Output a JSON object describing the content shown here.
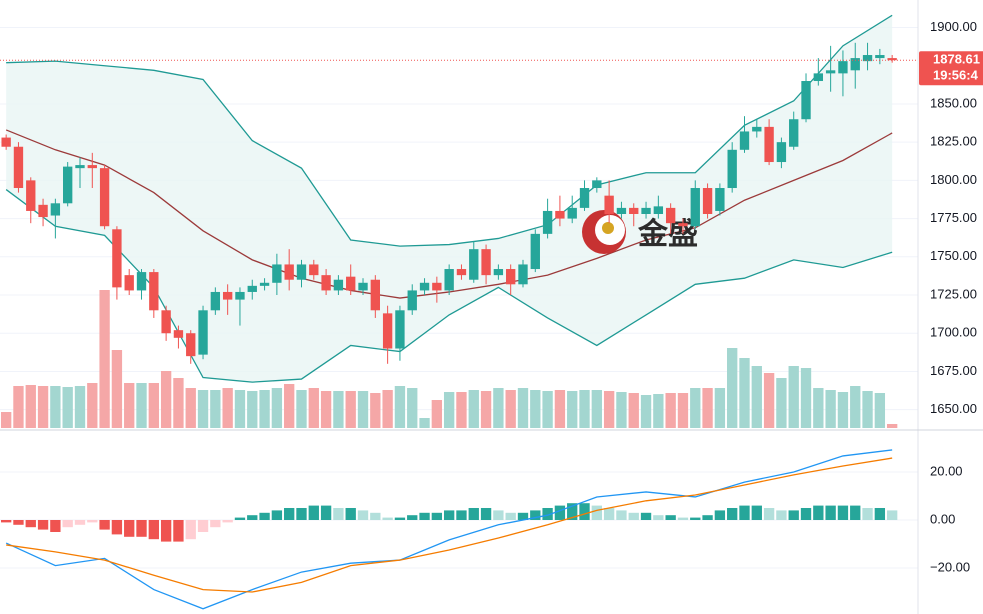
{
  "chart_data": {
    "type": "candlestick",
    "xlim": [
      -0.5,
      74.1
    ],
    "ylim": [
      1638,
      1918
    ],
    "yticks": [
      {
        "value": 1650,
        "label": "1650.00"
      },
      {
        "value": 1675,
        "label": "1675.00"
      },
      {
        "value": 1700,
        "label": "1700.00"
      },
      {
        "value": 1725,
        "label": "1725.00"
      },
      {
        "value": 1750,
        "label": "1750.00"
      },
      {
        "value": 1775,
        "label": "1775.00"
      },
      {
        "value": 1800,
        "label": "1800.00"
      },
      {
        "value": 1825,
        "label": "1825.00"
      },
      {
        "value": 1850,
        "label": "1850.00"
      },
      {
        "value": 1900,
        "label": "1900.00"
      }
    ],
    "grid": true,
    "up_color": "#26a69a",
    "down_color": "#ef5350",
    "candles": {
      "open": [
        1828,
        1822,
        1800,
        1784,
        1777,
        1785,
        1808,
        1810,
        1808,
        1768,
        1738,
        1728,
        1740,
        1715,
        1702,
        1700,
        1686,
        1715,
        1727,
        1722,
        1727,
        1731,
        1733,
        1745,
        1735,
        1745,
        1738,
        1728,
        1737,
        1728,
        1735,
        1713,
        1690,
        1715,
        1728,
        1733,
        1728,
        1742,
        1735,
        1755,
        1738,
        1742,
        1732,
        1742,
        1765,
        1780,
        1775,
        1782,
        1795,
        1790,
        1778,
        1782,
        1778,
        1778,
        1782,
        1772,
        1770,
        1795,
        1780,
        1795,
        1820,
        1832,
        1835,
        1812,
        1822,
        1840,
        1865,
        1870,
        1870,
        1872,
        1878,
        1880,
        1880
      ],
      "high": [
        1830,
        1825,
        1802,
        1788,
        1788,
        1812,
        1815,
        1818,
        1810,
        1770,
        1742,
        1742,
        1742,
        1718,
        1705,
        1702,
        1718,
        1730,
        1732,
        1730,
        1735,
        1736,
        1752,
        1755,
        1748,
        1748,
        1742,
        1738,
        1745,
        1736,
        1738,
        1718,
        1718,
        1732,
        1736,
        1737,
        1745,
        1745,
        1760,
        1758,
        1745,
        1745,
        1748,
        1768,
        1788,
        1790,
        1790,
        1800,
        1802,
        1800,
        1786,
        1785,
        1786,
        1790,
        1785,
        1775,
        1800,
        1798,
        1798,
        1825,
        1842,
        1840,
        1840,
        1828,
        1845,
        1870,
        1880,
        1888,
        1885,
        1890,
        1890,
        1886,
        1882
      ],
      "low": [
        1820,
        1792,
        1772,
        1770,
        1762,
        1783,
        1795,
        1795,
        1768,
        1722,
        1725,
        1722,
        1710,
        1695,
        1690,
        1680,
        1683,
        1712,
        1712,
        1705,
        1722,
        1728,
        1725,
        1728,
        1730,
        1735,
        1725,
        1725,
        1725,
        1725,
        1710,
        1680,
        1682,
        1712,
        1725,
        1720,
        1725,
        1735,
        1733,
        1732,
        1735,
        1725,
        1730,
        1740,
        1762,
        1770,
        1772,
        1780,
        1792,
        1772,
        1775,
        1770,
        1775,
        1775,
        1765,
        1765,
        1768,
        1775,
        1777,
        1792,
        1818,
        1828,
        1810,
        1808,
        1820,
        1838,
        1862,
        1858,
        1855,
        1860,
        1872,
        1876,
        1877
      ],
      "close": [
        1822,
        1795,
        1780,
        1776,
        1785,
        1809,
        1810,
        1808,
        1770,
        1730,
        1728,
        1740,
        1715,
        1700,
        1697,
        1685,
        1715,
        1727,
        1722,
        1727,
        1731,
        1733,
        1745,
        1735,
        1745,
        1738,
        1728,
        1735,
        1728,
        1733,
        1715,
        1690,
        1715,
        1728,
        1733,
        1728,
        1742,
        1738,
        1755,
        1738,
        1742,
        1732,
        1745,
        1765,
        1780,
        1775,
        1782,
        1795,
        1800,
        1778,
        1782,
        1778,
        1782,
        1783,
        1772,
        1770,
        1795,
        1778,
        1795,
        1820,
        1832,
        1835,
        1812,
        1825,
        1840,
        1865,
        1870,
        1872,
        1878,
        1880,
        1882,
        1882,
        1878.61
      ]
    },
    "volume": {
      "vlim": [
        0,
        428
      ],
      "up_color": "#a3d6d0",
      "down_color": "#f5a7a7",
      "values": [
        16,
        42,
        43,
        42,
        42,
        41,
        42,
        45,
        138,
        78,
        45,
        45,
        45,
        57,
        50,
        40,
        38,
        38,
        40,
        38,
        37,
        38,
        40,
        44,
        38,
        40,
        37,
        37,
        37,
        37,
        35,
        38,
        42,
        40,
        10,
        28,
        36,
        36,
        38,
        37,
        40,
        38,
        40,
        38,
        37,
        38,
        37,
        38,
        38,
        37,
        36,
        35,
        33,
        34,
        35,
        35,
        40,
        40,
        40,
        80,
        70,
        62,
        55,
        50,
        62,
        60,
        40,
        38,
        36,
        42,
        37,
        35,
        4
      ]
    },
    "bands": {
      "x": [
        0,
        4,
        8,
        12,
        16,
        20,
        24,
        28,
        32,
        36,
        40,
        44,
        48,
        52,
        56,
        60,
        64,
        68,
        72
      ],
      "fill": "#e9f5f4",
      "series": [
        {
          "color": "#1f9a94",
          "values": [
            1877,
            1878,
            1875,
            1872,
            1866,
            1826,
            1808,
            1761,
            1757,
            1758,
            1762,
            1771,
            1797,
            1805,
            1805,
            1836,
            1852,
            1888,
            1908
          ]
        },
        {
          "color": "#9c3a3a",
          "values": [
            1833,
            1820,
            1810,
            1792,
            1767,
            1748,
            1736,
            1728,
            1723,
            1727,
            1732,
            1738,
            1749,
            1761,
            1769,
            1787,
            1800,
            1813,
            1831
          ]
        },
        {
          "color": "#1f9a94",
          "values": [
            1794,
            1770,
            1764,
            1730,
            1671,
            1668,
            1670,
            1692,
            1688,
            1712,
            1730,
            1710,
            1692,
            1712,
            1732,
            1736,
            1748,
            1743,
            1753
          ]
        }
      ]
    },
    "last_price": {
      "value": 1878.61,
      "label": "1878.61"
    },
    "last_time": "19:56:4",
    "watermark": "金盛",
    "macd": {
      "ylim": [
        -39.17,
        37.5
      ],
      "yticks": [
        {
          "value": 20,
          "label": "20.00"
        },
        {
          "value": 0,
          "label": "0.00"
        },
        {
          "value": -20,
          "label": "−20.00"
        }
      ],
      "hist_colors": {
        "up_strong": "#26a69a",
        "up_weak": "#b2dfdb",
        "down_strong": "#ef5350",
        "down_weak": "#ffcdd2"
      },
      "histogram": [
        -1,
        -2,
        -3,
        -4,
        -5,
        -3,
        -2,
        -1,
        -4,
        -6,
        -7,
        -7,
        -8,
        -9,
        -9,
        -8,
        -5,
        -3,
        -1,
        1,
        2,
        3,
        4,
        5,
        5,
        6,
        6,
        5,
        5,
        4,
        3,
        1,
        1,
        2,
        3,
        3,
        4,
        4,
        5,
        5,
        4,
        3,
        3,
        4,
        5,
        6,
        7,
        7,
        6,
        5,
        4,
        3,
        3,
        2,
        2,
        1,
        1,
        2,
        4,
        5,
        6,
        6,
        5,
        4,
        4,
        5,
        6,
        6,
        6,
        6,
        5,
        5,
        4
      ],
      "x": [
        0,
        4,
        8,
        12,
        16,
        20,
        24,
        28,
        32,
        36,
        40,
        44,
        48,
        52,
        56,
        60,
        64,
        68,
        72
      ],
      "series": [
        {
          "color": "#2196f3",
          "values": [
            -9.6,
            -19,
            -16,
            -29,
            -37,
            -29,
            -21.7,
            -18,
            -16.7,
            -8.3,
            -2,
            2,
            9.6,
            11.7,
            9.6,
            15.8,
            20,
            26.7,
            29.2
          ]
        },
        {
          "color": "#f57c00",
          "values": [
            -10.4,
            -13.3,
            -16.7,
            -23,
            -29,
            -30,
            -26,
            -19,
            -16.7,
            -12.5,
            -7.5,
            -2,
            4,
            8,
            10.4,
            14.6,
            18.8,
            22.5,
            25.8
          ]
        }
      ]
    }
  }
}
